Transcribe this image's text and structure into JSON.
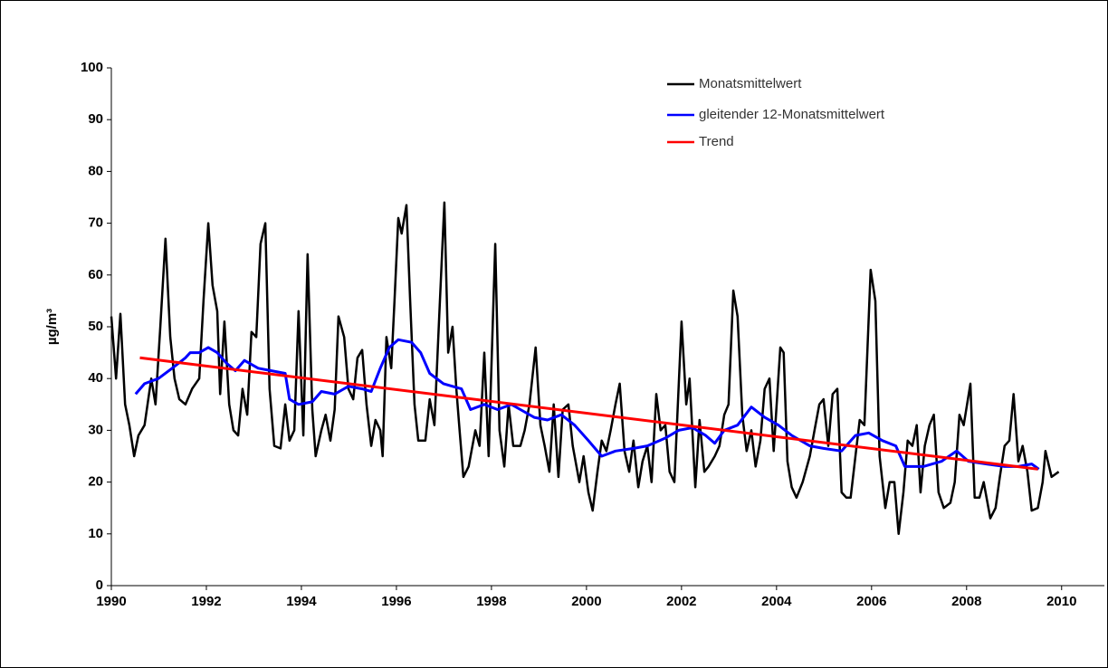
{
  "chart_data": {
    "type": "line",
    "y_label": "µg/m³",
    "xlim": [
      1990,
      2010.9
    ],
    "xticks": [
      1990,
      1992,
      1994,
      1996,
      1998,
      2000,
      2002,
      2004,
      2006,
      2008,
      2010
    ],
    "ylim": [
      0,
      100
    ],
    "yticks": [
      0,
      10,
      20,
      30,
      40,
      50,
      60,
      70,
      80,
      90,
      100
    ],
    "grid": false,
    "legend": "top-right",
    "series": [
      {
        "name": "Monatsmittelwert",
        "color": "#000000",
        "x": [
          1990.0,
          1990.1,
          1990.19,
          1990.29,
          1990.38,
          1990.48,
          1990.57,
          1990.7,
          1990.84,
          1990.93,
          1991.03,
          1991.14,
          1991.24,
          1991.33,
          1991.43,
          1991.56,
          1991.7,
          1991.85,
          1991.94,
          1992.04,
          1992.13,
          1992.23,
          1992.29,
          1992.38,
          1992.48,
          1992.57,
          1992.67,
          1992.76,
          1992.86,
          1992.95,
          1993.05,
          1993.14,
          1993.24,
          1993.33,
          1993.43,
          1993.56,
          1993.66,
          1993.75,
          1993.85,
          1993.94,
          1994.04,
          1994.13,
          1994.23,
          1994.3,
          1994.42,
          1994.51,
          1994.61,
          1994.7,
          1994.78,
          1994.9,
          1994.99,
          1995.09,
          1995.18,
          1995.28,
          1995.37,
          1995.47,
          1995.56,
          1995.66,
          1995.71,
          1995.79,
          1995.89,
          1995.96,
          1996.04,
          1996.11,
          1996.21,
          1996.29,
          1996.38,
          1996.46,
          1996.61,
          1996.7,
          1996.8,
          1996.9,
          1997.01,
          1997.09,
          1997.18,
          1997.26,
          1997.33,
          1997.41,
          1997.52,
          1997.66,
          1997.75,
          1997.85,
          1997.94,
          1998.08,
          1998.17,
          1998.27,
          1998.36,
          1998.46,
          1998.61,
          1998.7,
          1998.8,
          1998.93,
          1999.03,
          1999.12,
          1999.22,
          1999.31,
          1999.41,
          1999.5,
          1999.62,
          1999.71,
          1999.85,
          1999.94,
          2000.04,
          2000.13,
          2000.23,
          2000.32,
          2000.42,
          2000.51,
          2000.61,
          2000.7,
          2000.8,
          2000.9,
          2000.99,
          2001.09,
          2001.18,
          2001.28,
          2001.37,
          2001.47,
          2001.56,
          2001.66,
          2001.75,
          2001.85,
          2002.0,
          2002.1,
          2002.17,
          2002.29,
          2002.38,
          2002.48,
          2002.57,
          2002.7,
          2002.8,
          2002.9,
          2002.99,
          2003.09,
          2003.18,
          2003.28,
          2003.37,
          2003.47,
          2003.56,
          2003.66,
          2003.75,
          2003.85,
          2003.94,
          2004.08,
          2004.15,
          2004.23,
          2004.32,
          2004.42,
          2004.55,
          2004.7,
          2004.8,
          2004.9,
          2004.99,
          2005.09,
          2005.18,
          2005.28,
          2005.37,
          2005.47,
          2005.56,
          2005.66,
          2005.75,
          2005.85,
          2005.98,
          2006.08,
          2006.17,
          2006.29,
          2006.38,
          2006.48,
          2006.57,
          2006.67,
          2006.76,
          2006.86,
          2006.95,
          2007.03,
          2007.12,
          2007.22,
          2007.31,
          2007.41,
          2007.52,
          2007.66,
          2007.75,
          2007.85,
          2007.94,
          2008.08,
          2008.17,
          2008.27,
          2008.36,
          2008.5,
          2008.61,
          2008.7,
          2008.8,
          2008.9,
          2008.99,
          2009.09,
          2009.18,
          2009.28,
          2009.37,
          2009.5,
          2009.6,
          2009.66,
          2009.79,
          2009.94
        ],
        "values": [
          52,
          40,
          52.5,
          35,
          31,
          25,
          29,
          31,
          40,
          35,
          50,
          67,
          48,
          40,
          36,
          35,
          38,
          40,
          55,
          70,
          58,
          53,
          37,
          51,
          35,
          30,
          29,
          38,
          33,
          49,
          48,
          66,
          70,
          38,
          27,
          26.5,
          35,
          28,
          30,
          53,
          29,
          64,
          34,
          25,
          30,
          33,
          28,
          34,
          52,
          48,
          38,
          36,
          44,
          45.5,
          35,
          27,
          32,
          30,
          25,
          48,
          42,
          55,
          71,
          68,
          73.5,
          55,
          35,
          28,
          28,
          36,
          31,
          52,
          74,
          45,
          50,
          38,
          30,
          21,
          23,
          30,
          27,
          45,
          25,
          66,
          30,
          23,
          35,
          27,
          27,
          30,
          35,
          46,
          31,
          27,
          22,
          35,
          21,
          34,
          35,
          27,
          20,
          25,
          18,
          14.5,
          22,
          28,
          26,
          30,
          35,
          39,
          26,
          22,
          28,
          19,
          24,
          27,
          20,
          37,
          30,
          31,
          22,
          20,
          51,
          35,
          40,
          19,
          32,
          22,
          23,
          25,
          27,
          33,
          35,
          57,
          52,
          33,
          26,
          30,
          23,
          28,
          38,
          40,
          26,
          46,
          45,
          24,
          19,
          17,
          20,
          25,
          30,
          35,
          36,
          27,
          37,
          38,
          18,
          17,
          17,
          25,
          32,
          31,
          61,
          55,
          25,
          15,
          20,
          20,
          10,
          18,
          28,
          27,
          31,
          18,
          27,
          31,
          33,
          18,
          15,
          16,
          20,
          33,
          31,
          39,
          17,
          17,
          20,
          13,
          15,
          21,
          27,
          28,
          37,
          24,
          27,
          22,
          14.5,
          15,
          20,
          26,
          21,
          22
        ]
      },
      {
        "name": "gleitender 12-Monatsmittelwert",
        "color": "#0000ff",
        "x": [
          1990.51,
          1990.7,
          1990.99,
          1991.28,
          1991.56,
          1991.66,
          1991.85,
          1992.04,
          1992.23,
          1992.42,
          1992.61,
          1992.8,
          1993.09,
          1993.37,
          1993.66,
          1993.75,
          1993.94,
          1994.23,
          1994.42,
          1994.7,
          1994.99,
          1995.28,
          1995.47,
          1995.66,
          1995.85,
          1996.04,
          1996.32,
          1996.51,
          1996.7,
          1996.99,
          1997.18,
          1997.37,
          1997.56,
          1997.85,
          1998.13,
          1998.42,
          1998.61,
          1998.9,
          1999.18,
          1999.47,
          1999.75,
          2000.04,
          2000.32,
          2000.61,
          2000.99,
          2001.28,
          2001.66,
          2001.94,
          2002.23,
          2002.51,
          2002.7,
          2002.9,
          2003.18,
          2003.47,
          2003.75,
          2004.04,
          2004.32,
          2004.7,
          2004.99,
          2005.37,
          2005.66,
          2005.94,
          2006.23,
          2006.51,
          2006.7,
          2007.09,
          2007.47,
          2007.79,
          2008.04,
          2008.42,
          2008.8,
          2009.09,
          2009.37,
          2009.52
        ],
        "values": [
          37,
          39,
          40,
          42,
          44,
          45,
          45,
          46,
          45,
          43,
          41.5,
          43.5,
          42,
          41.5,
          41,
          36,
          35,
          35.5,
          37.5,
          37,
          38.5,
          38,
          37.5,
          42,
          46,
          47.5,
          47,
          45,
          41,
          39,
          38.5,
          38,
          34,
          35,
          34,
          35,
          34,
          32.5,
          32,
          33,
          31,
          28,
          25,
          26,
          26.5,
          27,
          28.5,
          30,
          30.5,
          29,
          27.5,
          30,
          31,
          34.5,
          32.5,
          31,
          29,
          27,
          26.5,
          26,
          29,
          29.5,
          28,
          27,
          23,
          23,
          24,
          26,
          24,
          23.5,
          23,
          23,
          23.5,
          22.5
        ]
      },
      {
        "name": "Trend",
        "color": "#ff0000",
        "x": [
          1990.6,
          2009.5
        ],
        "values": [
          44,
          22.5
        ]
      }
    ]
  }
}
